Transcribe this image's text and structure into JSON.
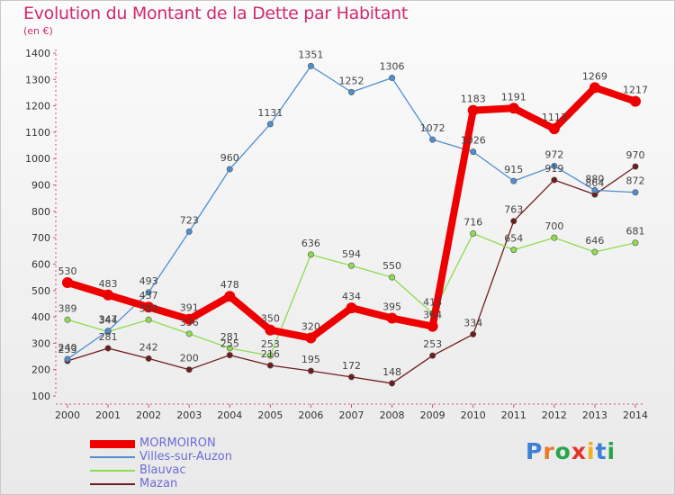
{
  "header": {
    "title": "Evolution du Montant de la Dette par Habitant",
    "unit": "(en €)"
  },
  "brand": {
    "logo_letters": [
      "P",
      "r",
      "o",
      "x",
      "i",
      "t",
      "i"
    ],
    "logo_colors": [
      "#3d7fd6",
      "#e87a2a",
      "#2aa44a",
      "#e2322a",
      "#f2b01e",
      "#3d7fd6",
      "#2aa44a"
    ]
  },
  "chart_data": {
    "type": "line",
    "title": "Evolution du Montant de la Dette par Habitant",
    "subtitle": "(en €)",
    "x": [
      "2000",
      "2001",
      "2002",
      "2003",
      "2004",
      "2005",
      "2006",
      "2007",
      "2008",
      "2009",
      "2010",
      "2011",
      "2012",
      "2013",
      "2014"
    ],
    "ylim": [
      100,
      1400
    ],
    "yticks": [
      100,
      200,
      300,
      400,
      500,
      600,
      700,
      800,
      900,
      1000,
      1100,
      1200,
      1300,
      1400
    ],
    "grid": false,
    "legend_position": "bottom-left",
    "series": [
      {
        "name": "MORMOIRON",
        "color": "#ee0000",
        "values": [
          530,
          483,
          437,
          391,
          478,
          350,
          320,
          434,
          395,
          364,
          1183,
          1191,
          1113,
          1269,
          1217
        ]
      },
      {
        "name": "Villes-sur-Auzon",
        "color": "#4f8ed0",
        "values": [
          240,
          347,
          493,
          723,
          960,
          1131,
          1351,
          1252,
          1306,
          1072,
          1026,
          915,
          972,
          880,
          872
        ]
      },
      {
        "name": "Blauvac",
        "color": "#8edc4e",
        "values": [
          389,
          344,
          389,
          336,
          281,
          253,
          636,
          594,
          550,
          413,
          716,
          654,
          700,
          646,
          681
        ]
      },
      {
        "name": "Mazan",
        "color": "#6e1d1d",
        "values": [
          233,
          281,
          242,
          200,
          255,
          216,
          195,
          172,
          148,
          253,
          334,
          763,
          919,
          864,
          970
        ]
      }
    ]
  }
}
